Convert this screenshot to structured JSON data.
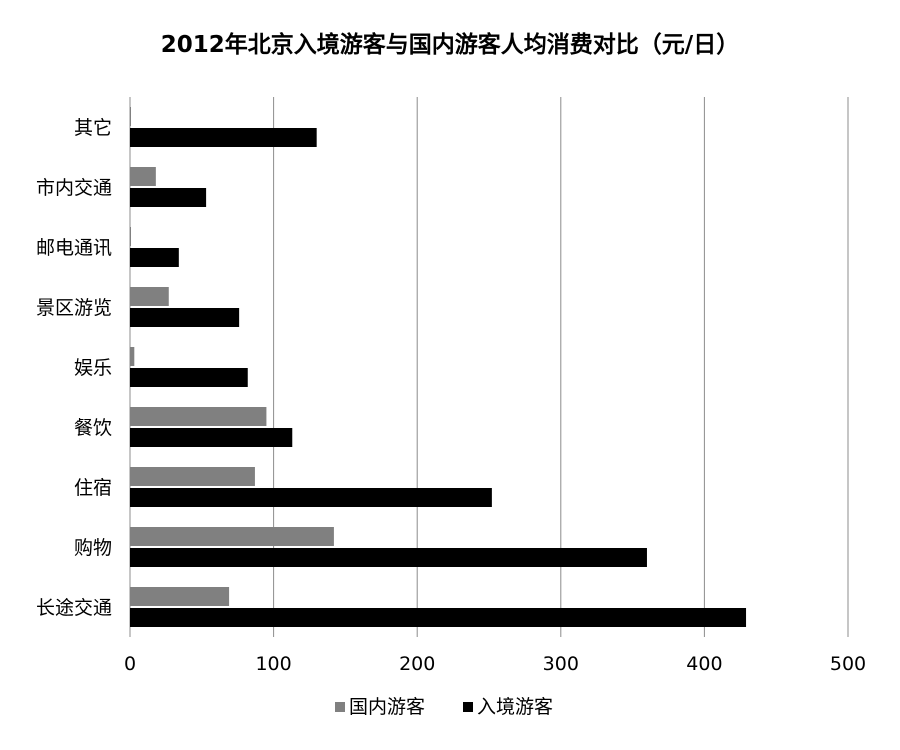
{
  "chart_data": {
    "type": "bar",
    "orientation": "horizontal",
    "title": "2012年北京入境游客与国内游客人均消费对比（元/日）",
    "xlabel": "",
    "ylabel": "",
    "categories": [
      "长途交通",
      "购物",
      "住宿",
      "餐饮",
      "娱乐",
      "景区游览",
      "邮电通讯",
      "市内交通",
      "其它"
    ],
    "series": [
      {
        "name": "国内游客",
        "color": "#808080",
        "values": [
          69,
          142,
          87,
          95,
          3,
          27,
          0.5,
          18,
          0.5
        ]
      },
      {
        "name": "入境游客",
        "color": "#000000",
        "values": [
          429,
          360,
          252,
          113,
          82,
          76,
          34,
          53,
          130
        ]
      }
    ],
    "xlim": [
      0,
      500
    ],
    "xticks": [
      "0",
      "100",
      "200",
      "300",
      "400",
      "500"
    ],
    "grid": "vertical",
    "legend_position": "bottom",
    "category_order": "bottom-to-top"
  }
}
